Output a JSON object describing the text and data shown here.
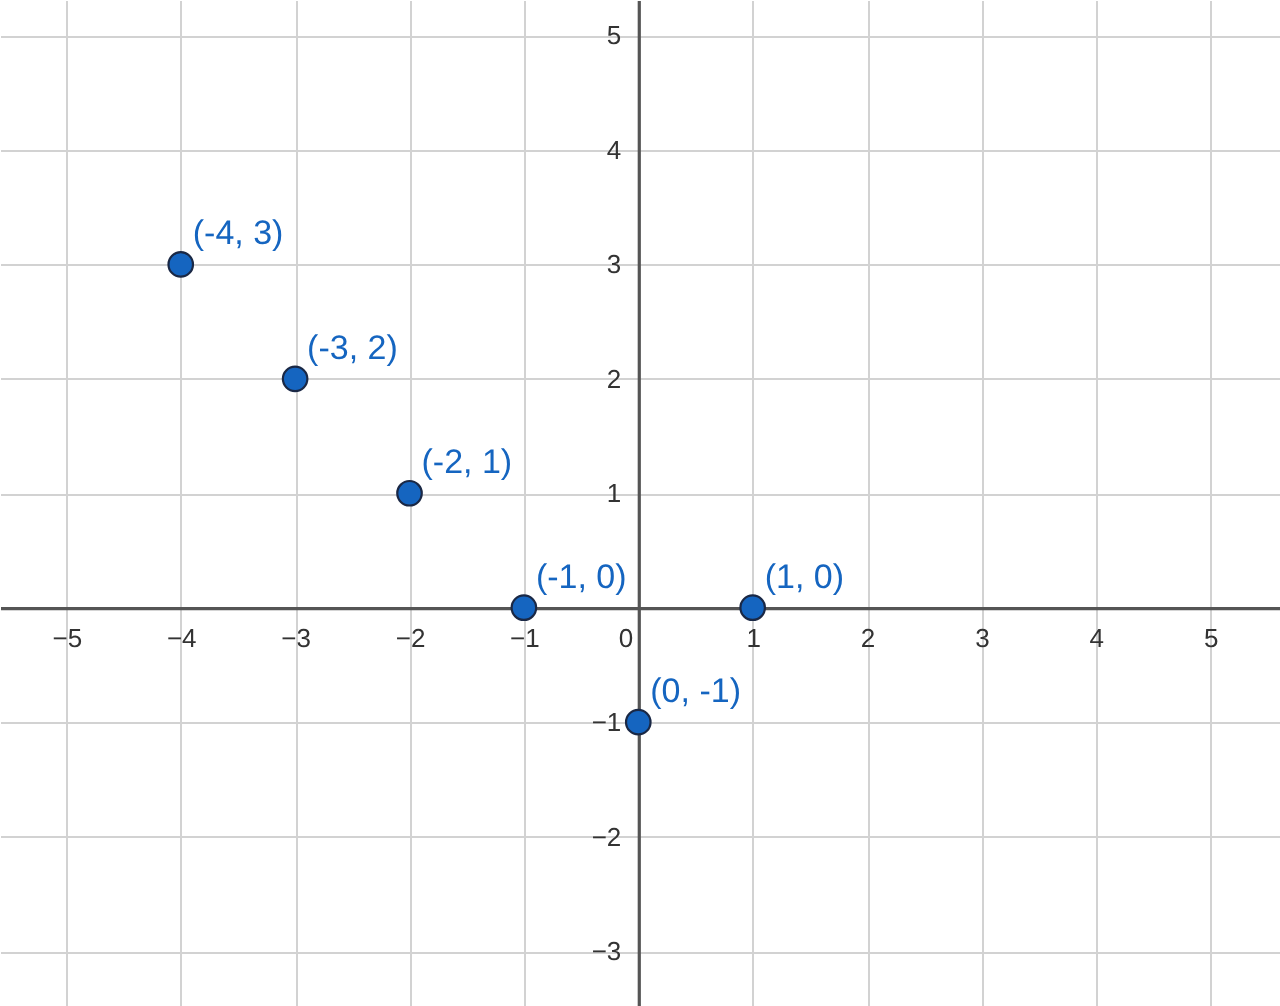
{
  "chart_data": {
    "type": "scatter",
    "x": [
      -4,
      -3,
      -2,
      -1,
      1,
      0
    ],
    "values": [
      3,
      2,
      1,
      0,
      0,
      -1
    ],
    "value_labels": [
      "(-4, 3)",
      "(-3, 2)",
      "(-2, 1)",
      "(-1, 0)",
      "(1, 0)",
      "(0, -1)"
    ],
    "color": "#1565c0",
    "marker": "circle",
    "xlim": [
      -5.58,
      5.61
    ],
    "ylim": [
      -3.48,
      5.31
    ],
    "xticks": [
      -5,
      -4,
      -3,
      -2,
      -1,
      0,
      1,
      2,
      3,
      4,
      5
    ],
    "yticks": [
      -3,
      -2,
      -1,
      1,
      2,
      3,
      4,
      5
    ],
    "grid": true
  }
}
